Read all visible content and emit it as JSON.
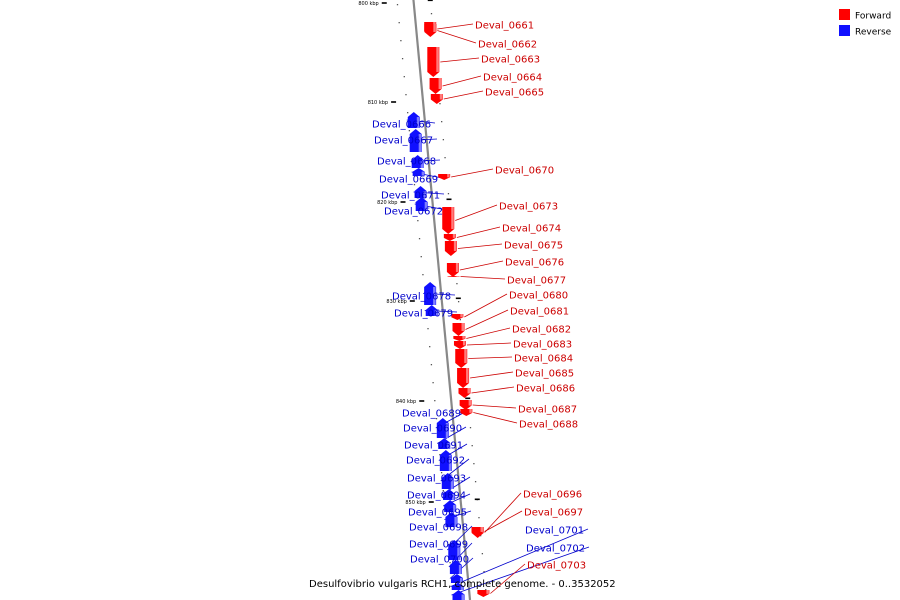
{
  "title": "Desulfovibrio vulgaris RCH1, complete genome. - 0..3532052",
  "legend": [
    {
      "label": "Forward",
      "color": "#ff0000"
    },
    {
      "label": "Reverse",
      "color": "#1010ff"
    }
  ],
  "colors": {
    "forward": "#ff0000",
    "forward_light": "#ff9a9a",
    "reverse": "#1010ff",
    "reverse_light": "#9a9aff",
    "backbone": "#888888",
    "forward_label": "#cc0000",
    "reverse_label": "#0000cc"
  },
  "kbp_markers": [
    "800 kbp",
    "810 kbp",
    "820 kbp",
    "830 kbp",
    "840 kbp",
    "850 kbp"
  ],
  "genes": [
    {
      "name": "Deval_0661",
      "strand": "forward"
    },
    {
      "name": "Deval_0662",
      "strand": "forward"
    },
    {
      "name": "Deval_0663",
      "strand": "forward"
    },
    {
      "name": "Deval_0664",
      "strand": "forward"
    },
    {
      "name": "Deval_0665",
      "strand": "forward"
    },
    {
      "name": "Deval_0666",
      "strand": "reverse"
    },
    {
      "name": "Deval_0667",
      "strand": "reverse"
    },
    {
      "name": "Deval_0668",
      "strand": "reverse"
    },
    {
      "name": "Deval_0669",
      "strand": "reverse"
    },
    {
      "name": "Deval_0670",
      "strand": "forward"
    },
    {
      "name": "Deval_0671",
      "strand": "reverse"
    },
    {
      "name": "Deval_0672",
      "strand": "reverse"
    },
    {
      "name": "Deval_0673",
      "strand": "forward"
    },
    {
      "name": "Deval_0674",
      "strand": "forward"
    },
    {
      "name": "Deval_0675",
      "strand": "forward"
    },
    {
      "name": "Deval_0676",
      "strand": "forward"
    },
    {
      "name": "Deval_0677",
      "strand": "forward"
    },
    {
      "name": "Deval_0678",
      "strand": "reverse"
    },
    {
      "name": "Deval_0679",
      "strand": "reverse"
    },
    {
      "name": "Deval_0680",
      "strand": "forward"
    },
    {
      "name": "Deval_0681",
      "strand": "forward"
    },
    {
      "name": "Deval_0682",
      "strand": "forward"
    },
    {
      "name": "Deval_0683",
      "strand": "forward"
    },
    {
      "name": "Deval_0684",
      "strand": "forward"
    },
    {
      "name": "Deval_0685",
      "strand": "forward"
    },
    {
      "name": "Deval_0686",
      "strand": "forward"
    },
    {
      "name": "Deval_0687",
      "strand": "forward"
    },
    {
      "name": "Deval_0688",
      "strand": "forward"
    },
    {
      "name": "Deval_0689",
      "strand": "reverse"
    },
    {
      "name": "Deval_0690",
      "strand": "reverse"
    },
    {
      "name": "Deval_0691",
      "strand": "reverse"
    },
    {
      "name": "Deval_0692",
      "strand": "reverse"
    },
    {
      "name": "Deval_0693",
      "strand": "reverse"
    },
    {
      "name": "Deval_0694",
      "strand": "reverse"
    },
    {
      "name": "Deval_0695",
      "strand": "reverse"
    },
    {
      "name": "Deval_0696",
      "strand": "forward"
    },
    {
      "name": "Deval_0697",
      "strand": "forward"
    },
    {
      "name": "Deval_0698",
      "strand": "reverse"
    },
    {
      "name": "Deval_0699",
      "strand": "reverse"
    },
    {
      "name": "Deval_0700",
      "strand": "reverse"
    },
    {
      "name": "Deval_0701",
      "strand": "reverse"
    },
    {
      "name": "Deval_0702",
      "strand": "reverse"
    },
    {
      "name": "Deval_0703",
      "strand": "forward"
    }
  ]
}
